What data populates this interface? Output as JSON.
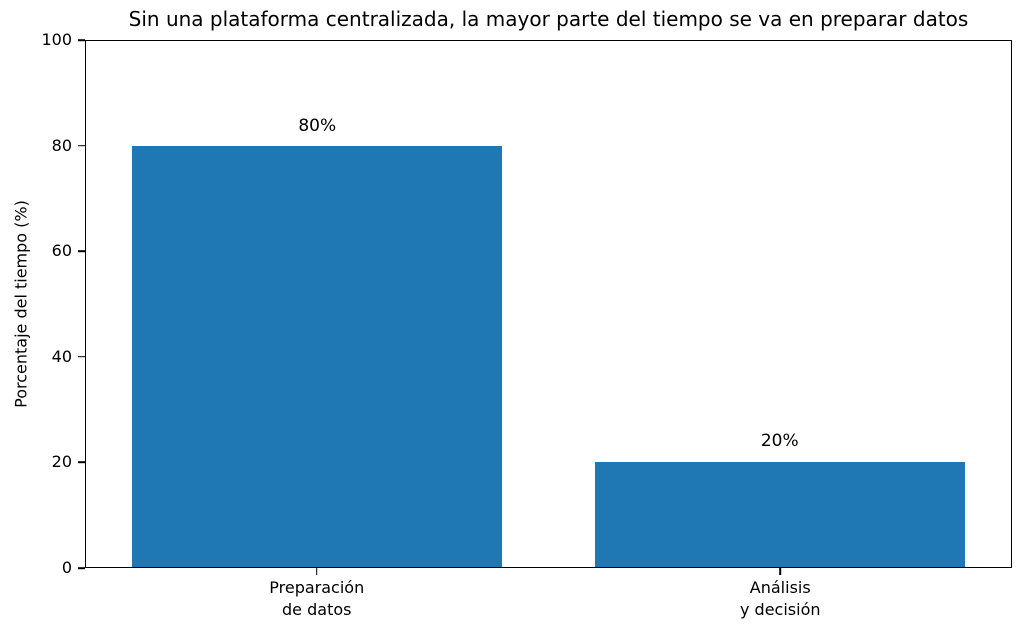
{
  "chart_data": {
    "type": "bar",
    "title": "Sin una plataforma centralizada, la mayor parte del tiempo se va en preparar datos",
    "ylabel": "Porcentaje del tiempo (%)",
    "xlabel": "",
    "categories": [
      "Preparación\nde datos",
      "Análisis\ny decisión"
    ],
    "values": [
      80,
      20
    ],
    "value_labels": [
      "80%",
      "20%"
    ],
    "yticks": [
      0,
      20,
      40,
      60,
      80,
      100
    ],
    "ylim": [
      0,
      100
    ],
    "bar_color": "#1f77b4",
    "bar_width_fraction": 0.8,
    "grid": false,
    "legend": "none",
    "background_color": "#ffffff",
    "text_color": "#000000"
  }
}
